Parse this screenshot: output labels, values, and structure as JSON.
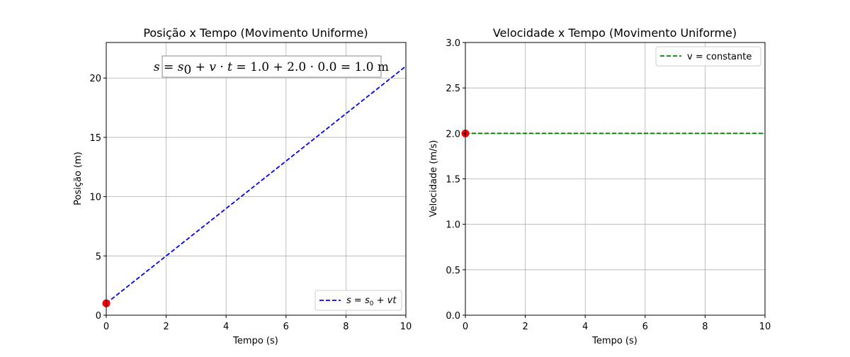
{
  "chart_data": [
    {
      "type": "line",
      "title": "Posição x Tempo (Movimento Uniforme)",
      "xlabel": "Tempo (s)",
      "ylabel": "Posição (m)",
      "xlim": [
        0,
        10
      ],
      "ylim": [
        0,
        23
      ],
      "xticks": [
        0,
        2,
        4,
        6,
        8,
        10
      ],
      "yticks": [
        0,
        5,
        10,
        15,
        20
      ],
      "grid": true,
      "legend_position": "lower-right",
      "series": [
        {
          "name": "s = s0 + vt",
          "x": [
            0,
            10
          ],
          "y": [
            1.0,
            21.0
          ],
          "color": "#0000ff",
          "style": "dashed"
        }
      ],
      "marker": {
        "x": 0,
        "y": 1.0,
        "color": "#ff0000"
      },
      "annotation": "s = s0 + v · t = 1.0 + 2.0 · 0.0 = 1.0  m"
    },
    {
      "type": "line",
      "title": "Velocidade x Tempo (Movimento Uniforme)",
      "xlabel": "Tempo (s)",
      "ylabel": "Velocidade (m/s)",
      "xlim": [
        0,
        10
      ],
      "ylim": [
        0,
        3.0
      ],
      "xticks": [
        0,
        2,
        4,
        6,
        8,
        10
      ],
      "yticks": [
        0.0,
        0.5,
        1.0,
        1.5,
        2.0,
        2.5,
        3.0
      ],
      "grid": true,
      "legend_position": "upper-right",
      "series": [
        {
          "name": "v = constante",
          "x": [
            0,
            10
          ],
          "y": [
            2.0,
            2.0
          ],
          "color": "#008000",
          "style": "dashed"
        }
      ],
      "marker": {
        "x": 0,
        "y": 2.0,
        "color": "#ff0000"
      }
    }
  ]
}
